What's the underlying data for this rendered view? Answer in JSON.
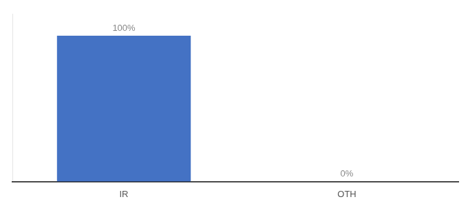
{
  "chart_data": {
    "type": "bar",
    "categories": [
      "IR",
      "OTH"
    ],
    "values": [
      100,
      0
    ],
    "value_labels": [
      "100%",
      "0%"
    ],
    "data_labels": true,
    "color": "#4472c4",
    "ylim": [
      0,
      115
    ],
    "grid": false,
    "tick_labels": "x"
  }
}
